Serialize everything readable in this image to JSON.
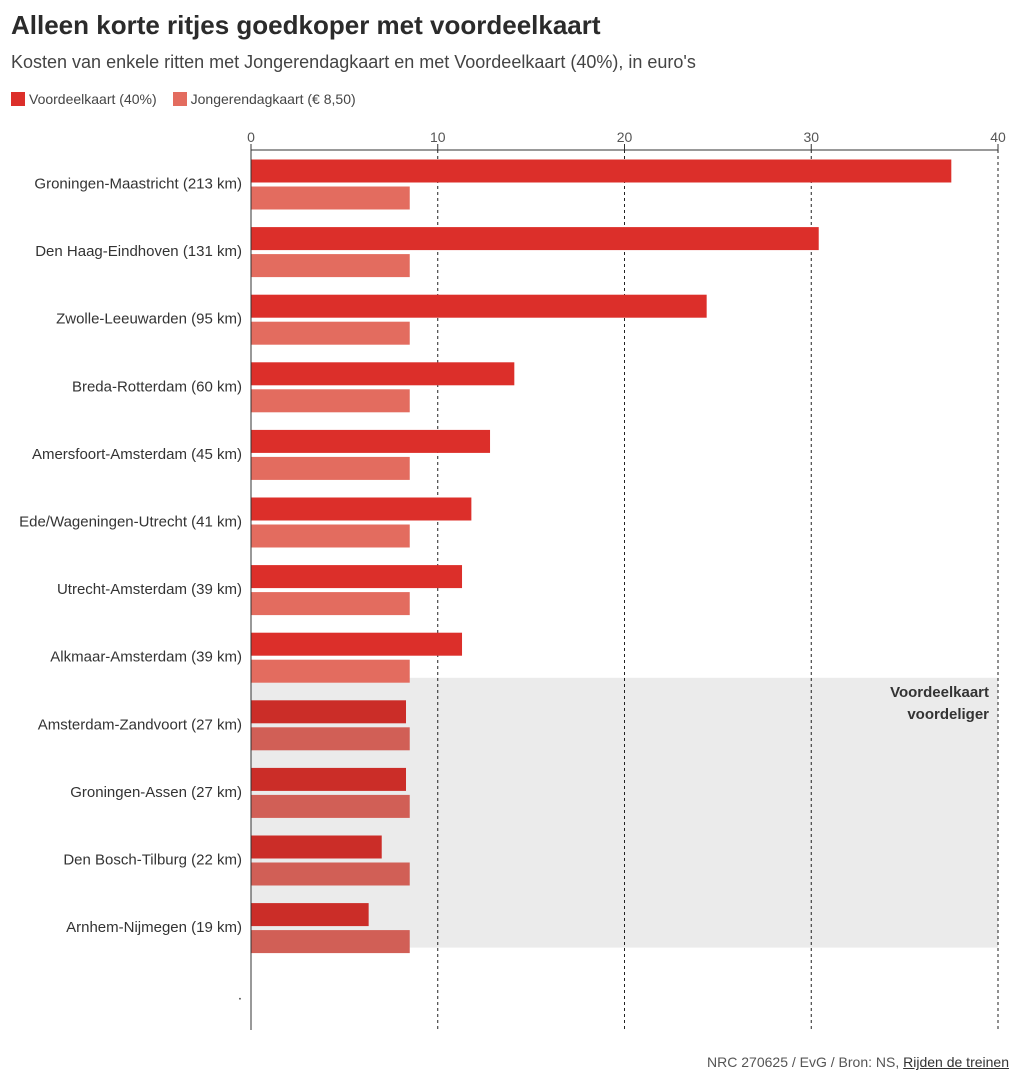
{
  "title": "Alleen korte ritjes goedkoper met voordeelkaart",
  "subtitle": "Kosten van enkele ritten met Jongerendagkaart en met Voordeelkaart (40%), in euro's",
  "legend": {
    "voordeel": "Voordeelkaart (40%)",
    "jongeren": "Jongerendagkaart (€ 8,50)"
  },
  "colors": {
    "voordeel": "#dc2f2a",
    "jongeren": "#e36c5f",
    "voordeel_zone": "#cb2d28",
    "jongeren_zone": "#d15f56",
    "zone_bg": "#ebebeb"
  },
  "zone_label": [
    "Voordeelkaart",
    "voordeliger"
  ],
  "footer": {
    "text": "NRC 270625 / EvG / Bron: NS, ",
    "link": "Rijden de treinen"
  },
  "chart_data": {
    "type": "bar",
    "orientation": "horizontal",
    "title": "Alleen korte ritjes goedkoper met voordeelkaart",
    "xlabel": "",
    "ylabel": "",
    "xlim": [
      0,
      40
    ],
    "xticks": [
      0,
      10,
      20,
      30,
      40
    ],
    "grid": true,
    "categories": [
      "Groningen-Maastricht (213 km)",
      "Den Haag-Eindhoven (131 km)",
      "Zwolle-Leeuwarden (95 km)",
      "Breda-Rotterdam (60 km)",
      "Amersfoort-Amsterdam (45 km)",
      "Ede/Wageningen-Utrecht (41 km)",
      "Utrecht-Amsterdam (39 km)",
      "Alkmaar-Amsterdam (39 km)",
      "Amsterdam-Zandvoort (27 km)",
      "Groningen-Assen (27 km)",
      "Den Bosch-Tilburg (22 km)",
      "Arnhem-Nijmegen (19 km)"
    ],
    "extra_tick_label": ".",
    "series": [
      {
        "name": "Voordeelkaart (40%)",
        "values": [
          37.5,
          30.4,
          24.4,
          14.1,
          12.8,
          11.8,
          11.3,
          11.3,
          8.3,
          8.3,
          7.0,
          6.3
        ]
      },
      {
        "name": "Jongerendagkaart (€ 8,50)",
        "values": [
          8.5,
          8.5,
          8.5,
          8.5,
          8.5,
          8.5,
          8.5,
          8.5,
          8.5,
          8.5,
          8.5,
          8.5
        ]
      }
    ],
    "highlight_rows": [
      8,
      9,
      10,
      11
    ]
  }
}
